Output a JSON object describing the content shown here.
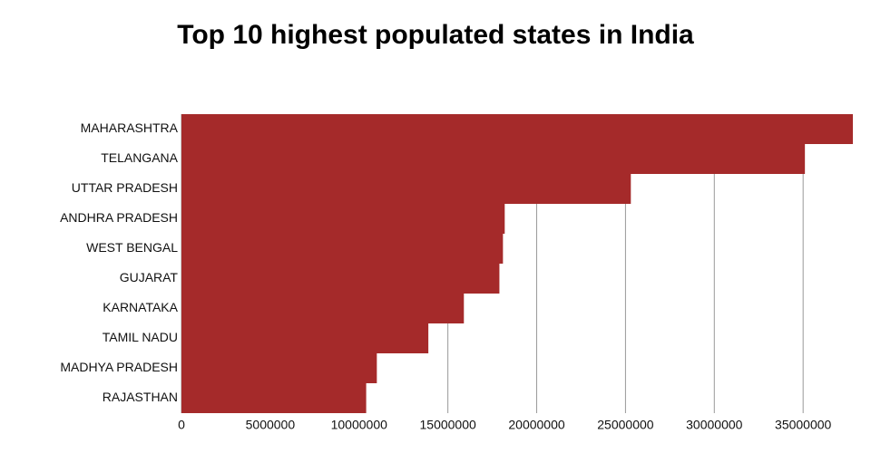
{
  "chart_data": {
    "type": "bar",
    "orientation": "horizontal",
    "title": "Top 10 highest populated states in India",
    "xlabel": "",
    "ylabel": "",
    "categories": [
      "MAHARASHTRA",
      "TELANGANA",
      "UTTAR PRADESH",
      "ANDHRA PRADESH",
      "WEST BENGAL",
      "GUJARAT",
      "KARNATAKA",
      "TAMIL NADU",
      "MADHYA PRADESH",
      "RAJASTHAN"
    ],
    "values": [
      37800000,
      35100000,
      25300000,
      18200000,
      18100000,
      17900000,
      15900000,
      13900000,
      11000000,
      10400000
    ],
    "xlim": [
      0,
      37800000
    ],
    "xticks": [
      0,
      5000000,
      10000000,
      15000000,
      20000000,
      25000000,
      30000000,
      35000000
    ],
    "xtick_labels": [
      "0",
      "5000000",
      "10000000",
      "15000000",
      "20000000",
      "25000000",
      "30000000",
      "35000000"
    ],
    "grid": "vertical",
    "legend": "none",
    "bar_color": "#a52a2a",
    "grid_color": "#999999"
  }
}
